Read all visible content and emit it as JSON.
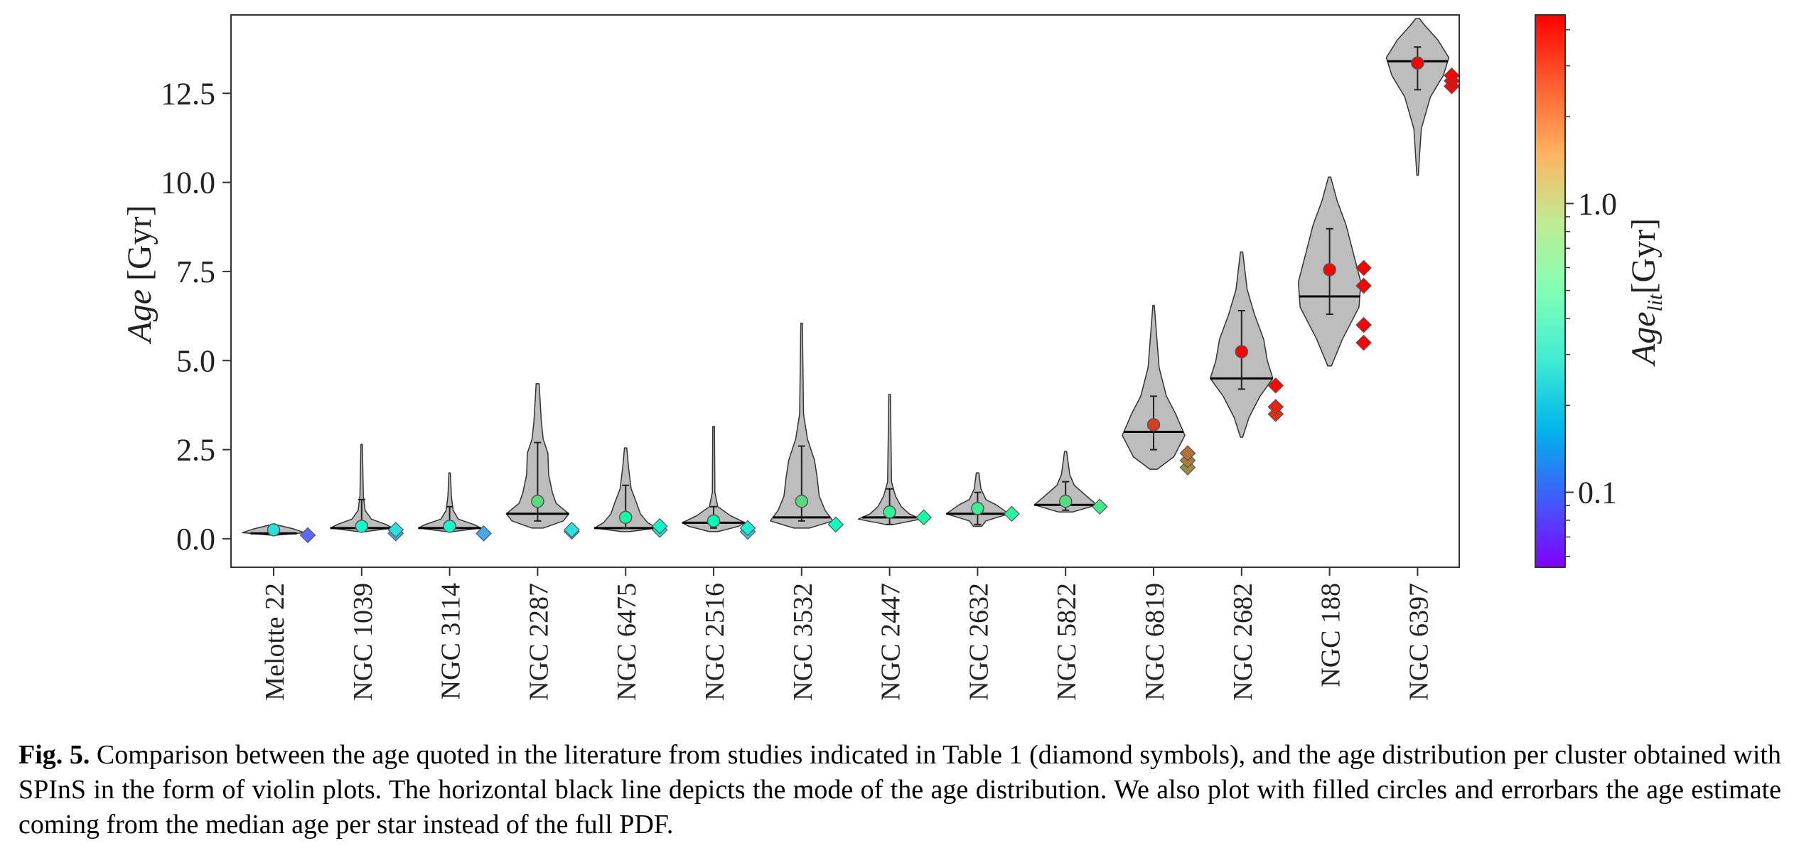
{
  "chart_data": {
    "type": "violin",
    "ylabel": "Age [Gyr]",
    "ylim": [
      -0.8,
      14.7
    ],
    "yticks": [
      0.0,
      2.5,
      5.0,
      7.5,
      10.0,
      12.5
    ],
    "ytick_labels": [
      "0.0",
      "2.5",
      "5.0",
      "7.5",
      "10.0",
      "12.5"
    ],
    "grid": false,
    "colorbar": {
      "label": "Age_lit [Gyr]",
      "label_main": "Age",
      "label_sub": "lit",
      "label_unit": "[Gyr]",
      "scale": "log",
      "range": [
        0.055,
        4.5
      ],
      "ticks": [
        0.1,
        1.0
      ],
      "tick_labels": [
        "0.1",
        "1.0"
      ],
      "colormap": "rainbow"
    },
    "clusters": [
      {
        "name": "Melotte 22",
        "mode": 0.15,
        "median": 0.25,
        "err": [
          0.2,
          0.3
        ],
        "min": 0.1,
        "max": 0.4,
        "lit": [
          0.1
        ],
        "profile": [
          [
            0.1,
            0.08
          ],
          [
            0.17,
            0.9
          ],
          [
            0.27,
            0.6
          ],
          [
            0.33,
            0.35
          ],
          [
            0.4,
            0.05
          ]
        ]
      },
      {
        "name": "NGC 1039",
        "mode": 0.3,
        "median": 0.35,
        "err": [
          0.25,
          1.1
        ],
        "min": 0.2,
        "max": 2.65,
        "lit": [
          0.15,
          0.25
        ],
        "profile": [
          [
            0.2,
            0.1
          ],
          [
            0.3,
            0.9
          ],
          [
            0.4,
            0.7
          ],
          [
            0.55,
            0.28
          ],
          [
            0.8,
            0.1
          ],
          [
            1.2,
            0.05
          ],
          [
            2.65,
            0.02
          ]
        ]
      },
      {
        "name": "NGC 3114",
        "mode": 0.3,
        "median": 0.35,
        "err": [
          0.25,
          0.9
        ],
        "min": 0.2,
        "max": 1.85,
        "lit": [
          0.15
        ],
        "profile": [
          [
            0.2,
            0.1
          ],
          [
            0.3,
            0.9
          ],
          [
            0.4,
            0.7
          ],
          [
            0.55,
            0.25
          ],
          [
            0.8,
            0.1
          ],
          [
            1.2,
            0.05
          ],
          [
            1.85,
            0.02
          ]
        ]
      },
      {
        "name": "NGC 2287",
        "mode": 0.7,
        "median": 1.05,
        "err": [
          0.5,
          2.7
        ],
        "min": 0.3,
        "max": 4.35,
        "lit": [
          0.2,
          0.25
        ],
        "profile": [
          [
            0.3,
            0.15
          ],
          [
            0.5,
            0.7
          ],
          [
            0.7,
            0.85
          ],
          [
            1.0,
            0.5
          ],
          [
            1.3,
            0.4
          ],
          [
            1.8,
            0.3
          ],
          [
            2.4,
            0.28
          ],
          [
            2.8,
            0.15
          ],
          [
            3.3,
            0.1
          ],
          [
            4.35,
            0.04
          ]
        ]
      },
      {
        "name": "NGC 6475",
        "mode": 0.3,
        "median": 0.6,
        "err": [
          0.3,
          1.5
        ],
        "min": 0.2,
        "max": 2.55,
        "lit": [
          0.25,
          0.35
        ],
        "profile": [
          [
            0.2,
            0.1
          ],
          [
            0.3,
            0.85
          ],
          [
            0.45,
            0.6
          ],
          [
            0.7,
            0.4
          ],
          [
            1.0,
            0.3
          ],
          [
            1.4,
            0.15
          ],
          [
            2.0,
            0.08
          ],
          [
            2.55,
            0.03
          ]
        ]
      },
      {
        "name": "NGC 2516",
        "mode": 0.45,
        "median": 0.5,
        "err": [
          0.3,
          0.9
        ],
        "min": 0.2,
        "max": 3.15,
        "lit": [
          0.2,
          0.3
        ],
        "profile": [
          [
            0.2,
            0.1
          ],
          [
            0.35,
            0.6
          ],
          [
            0.45,
            0.75
          ],
          [
            0.65,
            0.4
          ],
          [
            0.9,
            0.1
          ],
          [
            1.3,
            0.03
          ],
          [
            3.15,
            0.02
          ]
        ]
      },
      {
        "name": "NGC 3532",
        "mode": 0.6,
        "median": 1.05,
        "err": [
          0.5,
          2.6
        ],
        "min": 0.3,
        "max": 6.05,
        "lit": [
          0.4
        ],
        "profile": [
          [
            0.3,
            0.2
          ],
          [
            0.5,
            0.8
          ],
          [
            0.8,
            0.6
          ],
          [
            1.2,
            0.45
          ],
          [
            1.7,
            0.4
          ],
          [
            2.2,
            0.33
          ],
          [
            2.8,
            0.15
          ],
          [
            3.5,
            0.05
          ],
          [
            6.05,
            0.02
          ]
        ]
      },
      {
        "name": "NGC 2447",
        "mode": 0.6,
        "median": 0.75,
        "err": [
          0.4,
          1.4
        ],
        "min": 0.4,
        "max": 4.05,
        "lit": [
          0.6
        ],
        "profile": [
          [
            0.4,
            0.1
          ],
          [
            0.55,
            0.8
          ],
          [
            0.7,
            0.5
          ],
          [
            0.9,
            0.3
          ],
          [
            1.2,
            0.15
          ],
          [
            1.6,
            0.05
          ],
          [
            4.05,
            0.02
          ]
        ]
      },
      {
        "name": "NGC 2632",
        "mode": 0.7,
        "median": 0.85,
        "err": [
          0.4,
          1.3
        ],
        "min": 0.35,
        "max": 1.85,
        "lit": [
          0.7
        ],
        "profile": [
          [
            0.35,
            0.1
          ],
          [
            0.5,
            0.2
          ],
          [
            0.7,
            0.75
          ],
          [
            0.95,
            0.45
          ],
          [
            1.1,
            0.2
          ],
          [
            1.4,
            0.08
          ],
          [
            1.85,
            0.03
          ]
        ]
      },
      {
        "name": "NGC 5822",
        "mode": 0.95,
        "median": 1.05,
        "err": [
          0.8,
          1.6
        ],
        "min": 0.75,
        "max": 2.45,
        "lit": [
          0.9
        ],
        "profile": [
          [
            0.75,
            0.2
          ],
          [
            0.95,
            0.9
          ],
          [
            1.2,
            0.6
          ],
          [
            1.5,
            0.25
          ],
          [
            1.8,
            0.12
          ],
          [
            2.45,
            0.03
          ]
        ]
      },
      {
        "name": "NGC 6819",
        "mode": 3.0,
        "median": 3.2,
        "err": [
          2.5,
          4.0
        ],
        "min": 1.95,
        "max": 6.55,
        "lit": [
          2.0,
          2.2,
          2.4
        ],
        "profile": [
          [
            1.95,
            0.1
          ],
          [
            2.3,
            0.55
          ],
          [
            2.9,
            0.85
          ],
          [
            3.5,
            0.6
          ],
          [
            4.0,
            0.35
          ],
          [
            4.8,
            0.15
          ],
          [
            6.55,
            0.02
          ]
        ]
      },
      {
        "name": "NGC 2682",
        "mode": 4.5,
        "median": 5.25,
        "err": [
          4.2,
          6.4
        ],
        "min": 2.85,
        "max": 8.05,
        "lit": [
          3.5,
          3.7,
          4.3
        ],
        "profile": [
          [
            2.85,
            0.03
          ],
          [
            3.4,
            0.2
          ],
          [
            4.0,
            0.5
          ],
          [
            4.5,
            0.85
          ],
          [
            5.0,
            0.7
          ],
          [
            5.6,
            0.6
          ],
          [
            6.3,
            0.35
          ],
          [
            7.0,
            0.15
          ],
          [
            8.05,
            0.03
          ]
        ]
      },
      {
        "name": "NGC 188",
        "mode": 6.8,
        "median": 7.55,
        "err": [
          6.3,
          8.7
        ],
        "min": 4.85,
        "max": 10.15,
        "lit": [
          5.5,
          6.0,
          7.1,
          7.6
        ],
        "profile": [
          [
            4.85,
            0.05
          ],
          [
            5.6,
            0.35
          ],
          [
            6.5,
            0.8
          ],
          [
            7.2,
            0.85
          ],
          [
            8.0,
            0.65
          ],
          [
            8.8,
            0.45
          ],
          [
            9.5,
            0.2
          ],
          [
            10.15,
            0.03
          ]
        ]
      },
      {
        "name": "NGC 6397",
        "mode": 13.4,
        "median": 13.35,
        "err": [
          12.6,
          13.8
        ],
        "min": 10.2,
        "max": 14.6,
        "lit": [
          12.7,
          12.85,
          13.0
        ],
        "profile": [
          [
            10.2,
            0.02
          ],
          [
            11.5,
            0.1
          ],
          [
            12.4,
            0.35
          ],
          [
            13.0,
            0.7
          ],
          [
            13.5,
            0.85
          ],
          [
            14.0,
            0.55
          ],
          [
            14.4,
            0.2
          ],
          [
            14.6,
            0.05
          ]
        ]
      }
    ]
  },
  "caption": {
    "label": "Fig. 5.",
    "text": " Comparison between the age quoted in the literature from studies indicated in Table 1 (diamond symbols), and the age distribution per cluster obtained with SPInS in the form of violin plots. The horizontal black line depicts the mode of the age distribution. We also plot with filled circles and errorbars the age estimate coming from the median age per star instead of the full PDF."
  }
}
